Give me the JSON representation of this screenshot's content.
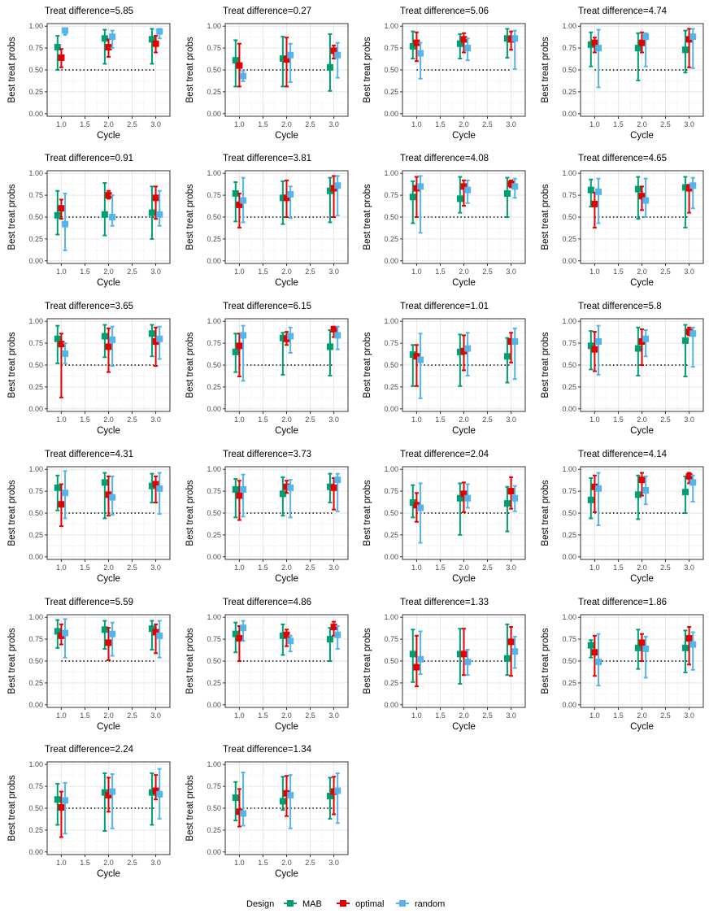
{
  "chart_data": {
    "type": "errorbar-faceted",
    "panels": [
      {
        "title": "Treat difference=5.85",
        "MAB": [
          [
            0.76,
            0.5,
            0.89
          ],
          [
            0.86,
            0.57,
            0.96
          ],
          [
            0.85,
            0.57,
            0.97
          ]
        ],
        "optimal": [
          [
            0.64,
            0.53,
            0.74
          ],
          [
            0.76,
            0.65,
            0.85
          ],
          [
            0.8,
            0.7,
            0.89
          ]
        ],
        "random": [
          [
            0.95,
            0.9,
            0.97
          ],
          [
            0.88,
            0.75,
            0.95
          ],
          [
            0.94,
            0.86,
            0.97
          ]
        ]
      },
      {
        "title": "Treat difference=0.27",
        "MAB": [
          [
            0.61,
            0.31,
            0.84
          ],
          [
            0.63,
            0.31,
            0.88
          ],
          [
            0.53,
            0.26,
            0.91
          ]
        ],
        "optimal": [
          [
            0.55,
            0.31,
            0.8
          ],
          [
            0.62,
            0.31,
            0.87
          ],
          [
            0.72,
            0.63,
            0.78
          ]
        ],
        "random": [
          [
            0.43,
            0.37,
            0.49
          ],
          [
            0.67,
            0.36,
            0.8
          ],
          [
            0.67,
            0.41,
            0.81
          ]
        ]
      },
      {
        "title": "Treat difference=5.06",
        "MAB": [
          [
            0.77,
            0.63,
            0.94
          ],
          [
            0.8,
            0.63,
            0.91
          ],
          [
            0.86,
            0.64,
            0.97
          ]
        ],
        "optimal": [
          [
            0.81,
            0.6,
            0.93
          ],
          [
            0.85,
            0.7,
            0.92
          ],
          [
            0.85,
            0.73,
            0.94
          ]
        ],
        "random": [
          [
            0.69,
            0.4,
            0.81
          ],
          [
            0.75,
            0.61,
            0.86
          ],
          [
            0.86,
            0.51,
            0.95
          ]
        ]
      },
      {
        "title": "Treat difference=4.74",
        "MAB": [
          [
            0.79,
            0.54,
            0.93
          ],
          [
            0.75,
            0.38,
            0.92
          ],
          [
            0.73,
            0.47,
            0.95
          ]
        ],
        "optimal": [
          [
            0.81,
            0.7,
            0.87
          ],
          [
            0.81,
            0.7,
            0.93
          ],
          [
            0.85,
            0.53,
            0.97
          ]
        ],
        "random": [
          [
            0.75,
            0.3,
            0.96
          ],
          [
            0.88,
            0.54,
            0.92
          ],
          [
            0.88,
            0.52,
            0.97
          ]
        ]
      },
      {
        "title": "Treat difference=0.91",
        "MAB": [
          [
            0.52,
            0.3,
            0.8
          ],
          [
            0.53,
            0.29,
            0.89
          ],
          [
            0.55,
            0.25,
            0.85
          ]
        ],
        "optimal": [
          [
            0.6,
            0.48,
            0.7
          ],
          [
            0.75,
            0.71,
            0.8
          ],
          [
            0.72,
            0.48,
            0.85
          ]
        ],
        "random": [
          [
            0.42,
            0.12,
            0.77
          ],
          [
            0.5,
            0.4,
            0.75
          ],
          [
            0.53,
            0.4,
            0.8
          ]
        ]
      },
      {
        "title": "Treat difference=3.81",
        "MAB": [
          [
            0.77,
            0.45,
            0.9
          ],
          [
            0.72,
            0.42,
            0.91
          ],
          [
            0.8,
            0.44,
            0.95
          ]
        ],
        "optimal": [
          [
            0.64,
            0.38,
            0.77
          ],
          [
            0.72,
            0.5,
            0.92
          ],
          [
            0.83,
            0.5,
            0.97
          ]
        ],
        "random": [
          [
            0.69,
            0.44,
            0.95
          ],
          [
            0.76,
            0.49,
            0.85
          ],
          [
            0.86,
            0.52,
            0.97
          ]
        ]
      },
      {
        "title": "Treat difference=4.08",
        "MAB": [
          [
            0.73,
            0.43,
            0.91
          ],
          [
            0.71,
            0.55,
            0.96
          ],
          [
            0.77,
            0.5,
            0.95
          ]
        ],
        "optimal": [
          [
            0.83,
            0.5,
            0.96
          ],
          [
            0.85,
            0.63,
            0.92
          ],
          [
            0.88,
            0.84,
            0.92
          ]
        ],
        "random": [
          [
            0.85,
            0.32,
            0.97
          ],
          [
            0.81,
            0.66,
            0.92
          ],
          [
            0.85,
            0.72,
            0.94
          ]
        ]
      },
      {
        "title": "Treat difference=4.65",
        "MAB": [
          [
            0.81,
            0.62,
            0.93
          ],
          [
            0.82,
            0.48,
            0.96
          ],
          [
            0.84,
            0.38,
            0.96
          ]
        ],
        "optimal": [
          [
            0.65,
            0.38,
            0.78
          ],
          [
            0.74,
            0.58,
            0.85
          ],
          [
            0.83,
            0.55,
            0.87
          ]
        ],
        "random": [
          [
            0.79,
            0.43,
            0.94
          ],
          [
            0.69,
            0.5,
            0.94
          ],
          [
            0.86,
            0.6,
            0.95
          ]
        ]
      },
      {
        "title": "Treat difference=3.65",
        "MAB": [
          [
            0.8,
            0.52,
            0.95
          ],
          [
            0.83,
            0.59,
            0.96
          ],
          [
            0.86,
            0.6,
            0.96
          ]
        ],
        "optimal": [
          [
            0.74,
            0.13,
            0.86
          ],
          [
            0.71,
            0.42,
            0.92
          ],
          [
            0.77,
            0.49,
            0.93
          ]
        ],
        "random": [
          [
            0.63,
            0.52,
            0.75
          ],
          [
            0.79,
            0.49,
            0.94
          ],
          [
            0.8,
            0.57,
            0.94
          ]
        ]
      },
      {
        "title": "Treat difference=6.15",
        "MAB": [
          [
            0.65,
            0.42,
            0.86
          ],
          [
            0.81,
            0.39,
            0.87
          ],
          [
            0.71,
            0.38,
            0.9
          ]
        ],
        "optimal": [
          [
            0.72,
            0.37,
            0.86
          ],
          [
            0.8,
            0.73,
            0.88
          ],
          [
            0.91,
            0.82,
            0.94
          ]
        ],
        "random": [
          [
            0.84,
            0.32,
            0.95
          ],
          [
            0.83,
            0.64,
            0.93
          ],
          [
            0.84,
            0.68,
            0.94
          ]
        ]
      },
      {
        "title": "Treat difference=1.01",
        "MAB": [
          [
            0.62,
            0.26,
            0.73
          ],
          [
            0.65,
            0.26,
            0.85
          ],
          [
            0.6,
            0.3,
            0.81
          ]
        ],
        "optimal": [
          [
            0.6,
            0.26,
            0.73
          ],
          [
            0.66,
            0.44,
            0.84
          ],
          [
            0.77,
            0.53,
            0.87
          ]
        ],
        "random": [
          [
            0.56,
            0.12,
            0.86
          ],
          [
            0.69,
            0.38,
            0.87
          ],
          [
            0.77,
            0.34,
            0.92
          ]
        ]
      },
      {
        "title": "Treat difference=5.8",
        "MAB": [
          [
            0.72,
            0.45,
            0.89
          ],
          [
            0.69,
            0.38,
            0.93
          ],
          [
            0.78,
            0.37,
            0.96
          ]
        ],
        "optimal": [
          [
            0.68,
            0.43,
            0.88
          ],
          [
            0.77,
            0.5,
            0.91
          ],
          [
            0.88,
            0.84,
            0.93
          ]
        ],
        "random": [
          [
            0.77,
            0.39,
            0.95
          ],
          [
            0.8,
            0.6,
            0.9
          ],
          [
            0.86,
            0.48,
            0.93
          ]
        ]
      },
      {
        "title": "Treat difference=4.31",
        "MAB": [
          [
            0.79,
            0.53,
            0.93
          ],
          [
            0.85,
            0.44,
            0.96
          ],
          [
            0.81,
            0.62,
            0.95
          ]
        ],
        "optimal": [
          [
            0.6,
            0.35,
            0.83
          ],
          [
            0.71,
            0.47,
            0.92
          ],
          [
            0.83,
            0.62,
            0.92
          ]
        ],
        "random": [
          [
            0.73,
            0.44,
            0.98
          ],
          [
            0.68,
            0.48,
            0.92
          ],
          [
            0.78,
            0.49,
            0.96
          ]
        ]
      },
      {
        "title": "Treat difference=3.73",
        "MAB": [
          [
            0.77,
            0.45,
            0.89
          ],
          [
            0.72,
            0.47,
            0.91
          ],
          [
            0.8,
            0.62,
            0.95
          ]
        ],
        "optimal": [
          [
            0.7,
            0.42,
            0.87
          ],
          [
            0.8,
            0.73,
            0.87
          ],
          [
            0.79,
            0.54,
            0.9
          ]
        ],
        "random": [
          [
            0.77,
            0.46,
            0.94
          ],
          [
            0.79,
            0.45,
            0.88
          ],
          [
            0.88,
            0.52,
            0.95
          ]
        ]
      },
      {
        "title": "Treat difference=2.04",
        "MAB": [
          [
            0.62,
            0.45,
            0.82
          ],
          [
            0.67,
            0.25,
            0.84
          ],
          [
            0.61,
            0.29,
            0.8
          ]
        ],
        "optimal": [
          [
            0.59,
            0.4,
            0.73
          ],
          [
            0.72,
            0.51,
            0.85
          ],
          [
            0.75,
            0.55,
            0.91
          ]
        ],
        "random": [
          [
            0.56,
            0.16,
            0.84
          ],
          [
            0.67,
            0.56,
            0.83
          ],
          [
            0.67,
            0.52,
            0.81
          ]
        ]
      },
      {
        "title": "Treat difference=4.14",
        "MAB": [
          [
            0.65,
            0.44,
            0.9
          ],
          [
            0.71,
            0.43,
            0.93
          ],
          [
            0.74,
            0.5,
            0.92
          ]
        ],
        "optimal": [
          [
            0.8,
            0.51,
            0.93
          ],
          [
            0.88,
            0.7,
            0.96
          ],
          [
            0.92,
            0.84,
            0.96
          ]
        ],
        "random": [
          [
            0.78,
            0.36,
            0.96
          ],
          [
            0.76,
            0.6,
            0.92
          ],
          [
            0.85,
            0.63,
            0.93
          ]
        ]
      },
      {
        "title": "Treat difference=5.59",
        "MAB": [
          [
            0.84,
            0.65,
            0.97
          ],
          [
            0.86,
            0.64,
            0.96
          ],
          [
            0.87,
            0.63,
            0.96
          ]
        ],
        "optimal": [
          [
            0.79,
            0.69,
            0.92
          ],
          [
            0.71,
            0.51,
            0.88
          ],
          [
            0.83,
            0.59,
            0.92
          ]
        ],
        "random": [
          [
            0.82,
            0.54,
            0.98
          ],
          [
            0.81,
            0.56,
            0.94
          ],
          [
            0.79,
            0.54,
            0.96
          ]
        ]
      },
      {
        "title": "Treat difference=4.86",
        "MAB": [
          [
            0.81,
            0.6,
            0.94
          ],
          [
            0.79,
            0.57,
            0.92
          ],
          [
            0.75,
            0.5,
            0.88
          ]
        ],
        "optimal": [
          [
            0.76,
            0.5,
            0.9
          ],
          [
            0.8,
            0.67,
            0.86
          ],
          [
            0.89,
            0.79,
            0.95
          ]
        ],
        "random": [
          [
            0.88,
            0.73,
            0.96
          ],
          [
            0.73,
            0.61,
            0.79
          ],
          [
            0.8,
            0.64,
            0.9
          ]
        ]
      },
      {
        "title": "Treat difference=1.33",
        "MAB": [
          [
            0.58,
            0.26,
            0.86
          ],
          [
            0.58,
            0.24,
            0.87
          ],
          [
            0.53,
            0.34,
            0.92
          ]
        ],
        "optimal": [
          [
            0.43,
            0.21,
            0.79
          ],
          [
            0.58,
            0.34,
            0.87
          ],
          [
            0.72,
            0.33,
            0.89
          ]
        ],
        "random": [
          [
            0.52,
            0.35,
            0.84
          ],
          [
            0.49,
            0.34,
            0.63
          ],
          [
            0.61,
            0.42,
            0.78
          ]
        ]
      },
      {
        "title": "Treat difference=1.86",
        "MAB": [
          [
            0.68,
            0.54,
            0.74
          ],
          [
            0.65,
            0.41,
            0.86
          ],
          [
            0.65,
            0.37,
            0.85
          ]
        ],
        "optimal": [
          [
            0.6,
            0.33,
            0.79
          ],
          [
            0.71,
            0.5,
            0.81
          ],
          [
            0.76,
            0.46,
            0.89
          ]
        ],
        "random": [
          [
            0.49,
            0.22,
            0.81
          ],
          [
            0.64,
            0.31,
            0.78
          ],
          [
            0.69,
            0.4,
            0.83
          ]
        ]
      },
      {
        "title": "Treat difference=2.24",
        "MAB": [
          [
            0.6,
            0.31,
            0.78
          ],
          [
            0.68,
            0.24,
            0.9
          ],
          [
            0.68,
            0.31,
            0.9
          ]
        ],
        "optimal": [
          [
            0.51,
            0.17,
            0.69
          ],
          [
            0.65,
            0.46,
            0.85
          ],
          [
            0.7,
            0.6,
            0.88
          ]
        ],
        "random": [
          [
            0.59,
            0.21,
            0.79
          ],
          [
            0.69,
            0.27,
            0.89
          ],
          [
            0.66,
            0.38,
            0.95
          ]
        ]
      },
      {
        "title": "Treat difference=1.34",
        "MAB": [
          [
            0.62,
            0.36,
            0.8
          ],
          [
            0.58,
            0.48,
            0.86
          ],
          [
            0.64,
            0.38,
            0.85
          ]
        ],
        "optimal": [
          [
            0.46,
            0.29,
            0.72
          ],
          [
            0.67,
            0.41,
            0.87
          ],
          [
            0.69,
            0.43,
            0.86
          ]
        ],
        "random": [
          [
            0.44,
            0.3,
            0.91
          ],
          [
            0.65,
            0.27,
            0.88
          ],
          [
            0.7,
            0.33,
            0.9
          ]
        ]
      }
    ],
    "series_order": [
      "MAB",
      "optimal",
      "random"
    ],
    "x": [
      1,
      2,
      3
    ],
    "x_offsets": {
      "MAB": -0.08,
      "optimal": 0,
      "random": 0.08
    },
    "reference_line": {
      "y": 0.5,
      "from": 1.0,
      "to": 3.0
    },
    "xlabel": "Cycle",
    "ylabel": "Best treat probs",
    "xticks": [
      "1.0",
      "1.5",
      "2.0",
      "2.5",
      "3.0"
    ],
    "xtick_values": [
      1.0,
      1.5,
      2.0,
      2.5,
      3.0
    ],
    "yticks": [
      "0.00",
      "0.25",
      "0.50",
      "0.75",
      "1.00"
    ],
    "ytick_values": [
      0,
      0.25,
      0.5,
      0.75,
      1.0
    ],
    "xlim": [
      0.7,
      3.3
    ],
    "ylim": [
      -0.03,
      1.03
    ],
    "grid": true,
    "legend": {
      "title": "Design",
      "position": "bottom",
      "entries": [
        "MAB",
        "optimal",
        "random"
      ]
    },
    "colors": {
      "MAB": "#009e73",
      "optimal": "#e50000",
      "random": "#56b4e9"
    }
  }
}
